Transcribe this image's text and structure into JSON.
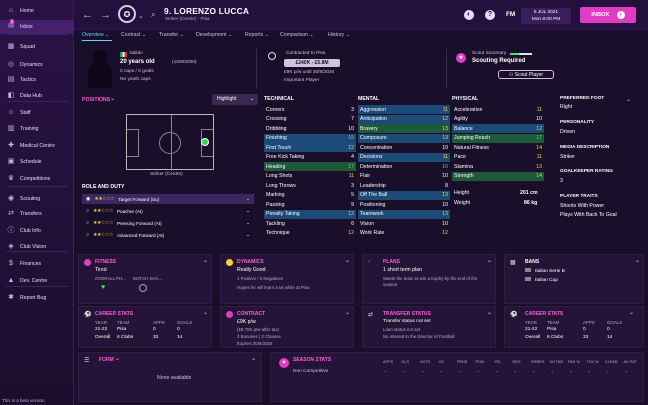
{
  "sidebar": {
    "items": [
      {
        "label": "Home",
        "icon": "home-icon",
        "glyph": "⌂"
      },
      {
        "label": "Inbox",
        "icon": "inbox-icon",
        "glyph": "✉",
        "badge": "8"
      },
      {
        "label": "Squad",
        "icon": "squad-icon",
        "glyph": "▦"
      },
      {
        "label": "Dynamics",
        "icon": "dynamics-icon",
        "glyph": "◎"
      },
      {
        "label": "Tactics",
        "icon": "tactics-icon",
        "glyph": "▤"
      },
      {
        "label": "Data Hub",
        "icon": "data-hub-icon",
        "glyph": "◧"
      },
      {
        "label": "Staff",
        "icon": "staff-icon",
        "glyph": "☺"
      },
      {
        "label": "Training",
        "icon": "training-icon",
        "glyph": "▥"
      },
      {
        "label": "Medical Centre",
        "icon": "medical-icon",
        "glyph": "✚"
      },
      {
        "label": "Schedule",
        "icon": "schedule-icon",
        "glyph": "▣"
      },
      {
        "label": "Competitions",
        "icon": "competitions-icon",
        "glyph": "♛"
      },
      {
        "label": "Scouting",
        "icon": "scouting-icon",
        "glyph": "◉"
      },
      {
        "label": "Transfers",
        "icon": "transfers-icon",
        "glyph": "⇄"
      },
      {
        "label": "Club Info",
        "icon": "club-info-icon",
        "glyph": "ⓘ"
      },
      {
        "label": "Club Vision",
        "icon": "club-vision-icon",
        "glyph": "◈"
      },
      {
        "label": "Finances",
        "icon": "finances-icon",
        "glyph": "$"
      },
      {
        "label": "Dev. Centre",
        "icon": "dev-centre-icon",
        "glyph": "▲"
      },
      {
        "label": "Report Bug",
        "icon": "report-bug-icon",
        "glyph": "✱"
      }
    ],
    "beta_text": "This is a beta version"
  },
  "topbar": {
    "player_name": "9. LORENZO LUCCA",
    "player_sub": "Striker (Centre) - Pisa",
    "fm_label": "FM",
    "date_line1": "5 JUL 2021",
    "date_line2": "Mon 8:00 PM",
    "inbox_label": "INBOX"
  },
  "tabs": [
    "Overview",
    "Contract",
    "Transfer",
    "Development",
    "Reports",
    "Comparison",
    "History"
  ],
  "profile": {
    "nationality": "Italian",
    "age_line": "20 years old",
    "dob": "(10/9/2000)",
    "caps": "0 caps / 0 goals",
    "youth": "No youth caps",
    "contract_title": "Contracted to Pisa",
    "value_range": "£240K - £5.8M",
    "wage_line": "£9K p/w until 30/6/2026",
    "status": "Important Player",
    "scout_summary": "Scout Summary",
    "scouting_required": "Scouting Required",
    "scout_player_btn": "Scout Player"
  },
  "positions": {
    "title": "POSITIONS",
    "highlight_label": "Highlight",
    "pitch_caption": "Striker (Centre)"
  },
  "role_duty": {
    "title": "ROLE AND DUTY",
    "roles": [
      {
        "label": "Target Forward (Su)",
        "stars": "★★☆☆☆"
      },
      {
        "label": "Poacher (At)",
        "stars": "★★☆☆☆"
      },
      {
        "label": "Pressing Forward (At)",
        "stars": "★★☆☆☆"
      },
      {
        "label": "Advanced Forward (At)",
        "stars": "★★☆☆☆"
      }
    ]
  },
  "technical": {
    "title": "TECHNICAL",
    "attrs": [
      {
        "n": "Corners",
        "v": "3"
      },
      {
        "n": "Crossing",
        "v": "7"
      },
      {
        "n": "Dribbling",
        "v": "10"
      },
      {
        "n": "Finishing",
        "v": "15"
      },
      {
        "n": "First Touch",
        "v": "12"
      },
      {
        "n": "Free Kick Taking",
        "v": "4"
      },
      {
        "n": "Heading",
        "v": "17"
      },
      {
        "n": "Long Shots",
        "v": "11"
      },
      {
        "n": "Long Throws",
        "v": "3"
      },
      {
        "n": "Marking",
        "v": "5"
      },
      {
        "n": "Passing",
        "v": "9"
      },
      {
        "n": "Penalty Taking",
        "v": "12"
      },
      {
        "n": "Tackling",
        "v": "6"
      },
      {
        "n": "Technique",
        "v": "12"
      }
    ]
  },
  "mental": {
    "title": "MENTAL",
    "attrs": [
      {
        "n": "Aggression",
        "v": "11"
      },
      {
        "n": "Anticipation",
        "v": "12"
      },
      {
        "n": "Bravery",
        "v": "13"
      },
      {
        "n": "Composure",
        "v": "13"
      },
      {
        "n": "Concentration",
        "v": "10"
      },
      {
        "n": "Decisions",
        "v": "11"
      },
      {
        "n": "Determination",
        "v": "16"
      },
      {
        "n": "Flair",
        "v": "10"
      },
      {
        "n": "Leadership",
        "v": "8"
      },
      {
        "n": "Off The Ball",
        "v": "13"
      },
      {
        "n": "Positioning",
        "v": "10"
      },
      {
        "n": "Teamwork",
        "v": "13"
      },
      {
        "n": "Vision",
        "v": "10"
      },
      {
        "n": "Work Rate",
        "v": "12"
      }
    ]
  },
  "physical": {
    "title": "PHYSICAL",
    "attrs": [
      {
        "n": "Acceleration",
        "v": "11"
      },
      {
        "n": "Agility",
        "v": "10"
      },
      {
        "n": "Balance",
        "v": "12"
      },
      {
        "n": "Jumping Reach",
        "v": "17"
      },
      {
        "n": "Natural Fitness",
        "v": "14"
      },
      {
        "n": "Pace",
        "v": "11"
      },
      {
        "n": "Stamina",
        "v": "13"
      },
      {
        "n": "Strength",
        "v": "14"
      }
    ],
    "height_label": "Height",
    "height": "201 cm",
    "weight_label": "Weight",
    "weight": "86 kg"
  },
  "info": {
    "preferred_foot_label": "PREFERRED FOOT",
    "preferred_foot": "Right",
    "personality_label": "PERSONALITY",
    "personality": "Driven",
    "media_label": "MEDIA DESCRIPTION",
    "media": "Striker",
    "gk_label": "GOALKEEPER RATING",
    "gk": "3",
    "traits_label": "PLAYER TRAITS",
    "traits": [
      "Shoots With Power",
      "Plays With Back To Goal"
    ]
  },
  "fitness": {
    "title": "FITNESS",
    "status": "Tired",
    "col1": "OVERALL PH...",
    "col2": "MATCH SHA..."
  },
  "dynamics": {
    "title": "DYNAMICS",
    "status": "Really Good",
    "detail": "1 Positive / 0 Negatives",
    "note": "Hopes he will learn a lot while at Pisa"
  },
  "plans": {
    "title": "PLANS",
    "status": "1 short term plan",
    "note": "Wants the team to win a trophy by the end of the season"
  },
  "bans": {
    "title": "BANS",
    "items": [
      "Italian Serie B",
      "Italian Cup"
    ]
  },
  "career_stats": {
    "title": "CAREER STATS",
    "headers": [
      "YEAR",
      "TEAM",
      "APPS",
      "GOALS"
    ],
    "rows": [
      [
        "21-22",
        "Pisa",
        "0",
        "0"
      ],
      [
        "Overall",
        "6 Clubs",
        "33",
        "14"
      ]
    ]
  },
  "contract": {
    "title": "CONTRACT",
    "wage": "£9K p/w",
    "sub1": "(£9.70K p/w after tax)",
    "sub2": "3 Bonuses | 2 Clauses",
    "expires": "Expires 30/6/2026"
  },
  "transfer_status": {
    "title": "TRANSFER STATUS",
    "status": "Transfer status not set",
    "loan": "Loan status not set",
    "interest": "No interest in the Director of Football"
  },
  "career_stats2": {
    "title": "CAREER STATS",
    "headers": [
      "YEAR",
      "TEAM",
      "APPS",
      "GOALS"
    ],
    "rows": [
      [
        "21-22",
        "Pisa",
        "0",
        "0"
      ],
      [
        "Overall",
        "6 Clubs",
        "33",
        "14"
      ]
    ]
  },
  "form": {
    "title": "FORM",
    "empty": "None available"
  },
  "season_stats": {
    "title": "SEASON STATS",
    "headers": [
      "APPS",
      "GLS",
      "ASTS",
      "XG",
      "PENS",
      "POM",
      "YEL",
      "RED",
      "DRBPG",
      "SH TAR",
      "PAS %",
      "TCK W",
      "CLEAR",
      "AV RAT"
    ],
    "row_label": "Non Competitive",
    "values": [
      "-",
      "-",
      "-",
      "-",
      "-",
      "-",
      "-",
      "-",
      "-",
      "-",
      "-",
      "-",
      "-",
      "-"
    ]
  }
}
